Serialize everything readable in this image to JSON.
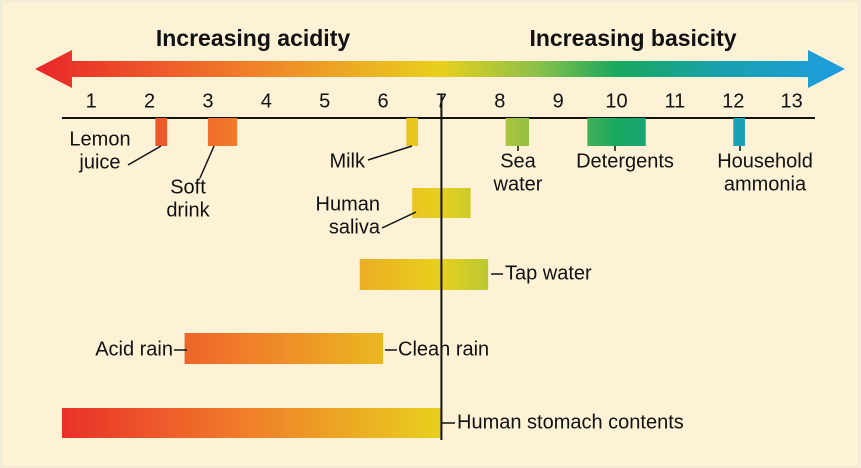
{
  "chart_data": {
    "type": "range",
    "annotations": [
      "Increasing acidity",
      "Increasing basicity"
    ],
    "xlim": [
      0.5,
      13.4
    ],
    "xticks": [
      1,
      2,
      3,
      4,
      5,
      6,
      7,
      8,
      9,
      10,
      11,
      12,
      13
    ],
    "reference_x": 7,
    "items": [
      {
        "label": [
          "Lemon",
          "juice"
        ],
        "range": [
          2.1,
          2.3
        ]
      },
      {
        "label": [
          "Soft",
          "drink"
        ],
        "range": [
          3.0,
          3.5
        ]
      },
      {
        "label": [
          "Milk"
        ],
        "range": [
          6.4,
          6.6
        ]
      },
      {
        "label": [
          "Sea",
          "water"
        ],
        "range": [
          8.1,
          8.5
        ]
      },
      {
        "label": [
          "Detergents"
        ],
        "range": [
          9.5,
          10.5
        ]
      },
      {
        "label": [
          "Household",
          "ammonia"
        ],
        "range": [
          12.0,
          12.2
        ]
      },
      {
        "label": [
          "Human",
          "saliva"
        ],
        "range": [
          6.5,
          7.5
        ]
      },
      {
        "label": [
          "Tap water"
        ],
        "range": [
          5.6,
          7.8
        ]
      },
      {
        "label": [
          "Acid rain"
        ],
        "end_label": "Clean rain",
        "range": [
          2.6,
          6.0
        ]
      },
      {
        "label": [
          "Human stomach contents"
        ],
        "range": [
          0.5,
          7.0
        ]
      }
    ]
  }
}
